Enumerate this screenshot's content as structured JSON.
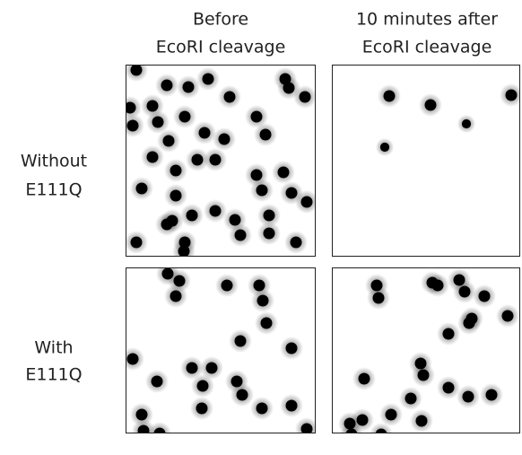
{
  "columns": [
    [
      "Before",
      "EcoRI cleavage"
    ],
    [
      "10 minutes after",
      "EcoRI cleavage"
    ]
  ],
  "rows": [
    [
      "Without",
      "E111Q"
    ],
    [
      "With",
      "E111Q"
    ]
  ]
}
